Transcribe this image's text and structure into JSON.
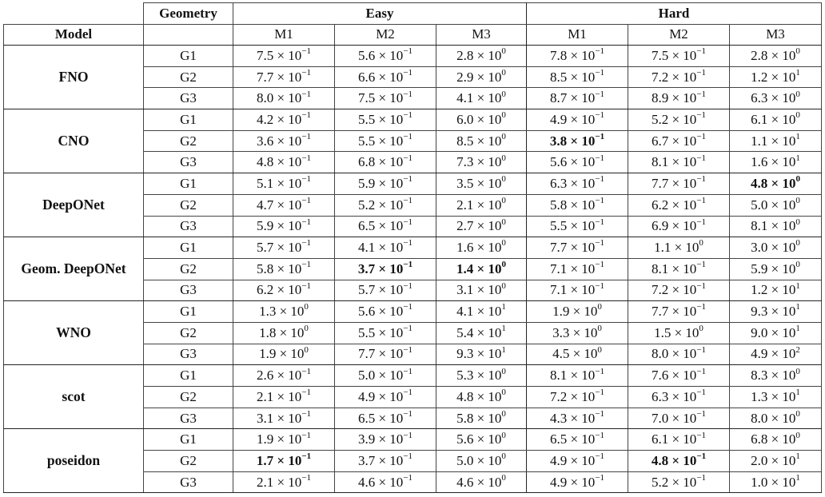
{
  "header": {
    "geometry": "Geometry",
    "easy": "Easy",
    "hard": "Hard",
    "model": "Model",
    "metrics": [
      "M1",
      "M2",
      "M3",
      "M1",
      "M2",
      "M3"
    ]
  },
  "rows": [
    {
      "model": "FNO",
      "geometries": [
        {
          "g": "G1",
          "cells": [
            [
              "7.5",
              "-1"
            ],
            [
              "5.6",
              "-1"
            ],
            [
              "2.8",
              "0"
            ],
            [
              "7.8",
              "-1"
            ],
            [
              "7.5",
              "-1"
            ],
            [
              "2.8",
              "0"
            ]
          ],
          "bold": []
        },
        {
          "g": "G2",
          "cells": [
            [
              "7.7",
              "-1"
            ],
            [
              "6.6",
              "-1"
            ],
            [
              "2.9",
              "0"
            ],
            [
              "8.5",
              "-1"
            ],
            [
              "7.2",
              "-1"
            ],
            [
              "1.2",
              "1"
            ]
          ],
          "bold": []
        },
        {
          "g": "G3",
          "cells": [
            [
              "8.0",
              "-1"
            ],
            [
              "7.5",
              "-1"
            ],
            [
              "4.1",
              "0"
            ],
            [
              "8.7",
              "-1"
            ],
            [
              "8.9",
              "-1"
            ],
            [
              "6.3",
              "0"
            ]
          ],
          "bold": []
        }
      ]
    },
    {
      "model": "CNO",
      "geometries": [
        {
          "g": "G1",
          "cells": [
            [
              "4.2",
              "-1"
            ],
            [
              "5.5",
              "-1"
            ],
            [
              "6.0",
              "0"
            ],
            [
              "4.9",
              "-1"
            ],
            [
              "5.2",
              "-1"
            ],
            [
              "6.1",
              "0"
            ]
          ],
          "bold": []
        },
        {
          "g": "G2",
          "cells": [
            [
              "3.6",
              "-1"
            ],
            [
              "5.5",
              "-1"
            ],
            [
              "8.5",
              "0"
            ],
            [
              "3.8",
              "-1"
            ],
            [
              "6.7",
              "-1"
            ],
            [
              "1.1",
              "1"
            ]
          ],
          "bold": [
            3
          ]
        },
        {
          "g": "G3",
          "cells": [
            [
              "4.8",
              "-1"
            ],
            [
              "6.8",
              "-1"
            ],
            [
              "7.3",
              "0"
            ],
            [
              "5.6",
              "-1"
            ],
            [
              "8.1",
              "-1"
            ],
            [
              "1.6",
              "1"
            ]
          ],
          "bold": []
        }
      ]
    },
    {
      "model": "DeepONet",
      "geometries": [
        {
          "g": "G1",
          "cells": [
            [
              "5.1",
              "-1"
            ],
            [
              "5.9",
              "-1"
            ],
            [
              "3.5",
              "0"
            ],
            [
              "6.3",
              "-1"
            ],
            [
              "7.7",
              "-1"
            ],
            [
              "4.8",
              "0"
            ]
          ],
          "bold": [
            5
          ]
        },
        {
          "g": "G2",
          "cells": [
            [
              "4.7",
              "-1"
            ],
            [
              "5.2",
              "-1"
            ],
            [
              "2.1",
              "0"
            ],
            [
              "5.8",
              "-1"
            ],
            [
              "6.2",
              "-1"
            ],
            [
              "5.0",
              "0"
            ]
          ],
          "bold": []
        },
        {
          "g": "G3",
          "cells": [
            [
              "5.9",
              "-1"
            ],
            [
              "6.5",
              "-1"
            ],
            [
              "2.7",
              "0"
            ],
            [
              "5.5",
              "-1"
            ],
            [
              "6.9",
              "-1"
            ],
            [
              "8.1",
              "0"
            ]
          ],
          "bold": []
        }
      ]
    },
    {
      "model": "Geom. DeepONet",
      "geometries": [
        {
          "g": "G1",
          "cells": [
            [
              "5.7",
              "-1"
            ],
            [
              "4.1",
              "-1"
            ],
            [
              "1.6",
              "0"
            ],
            [
              "7.7",
              "-1"
            ],
            [
              "1.1",
              "0"
            ],
            [
              "3.0",
              "0"
            ]
          ],
          "bold": []
        },
        {
          "g": "G2",
          "cells": [
            [
              "5.8",
              "-1"
            ],
            [
              "3.7",
              "-1"
            ],
            [
              "1.4",
              "0"
            ],
            [
              "7.1",
              "-1"
            ],
            [
              "8.1",
              "-1"
            ],
            [
              "5.9",
              "0"
            ]
          ],
          "bold": [
            1,
            2
          ]
        },
        {
          "g": "G3",
          "cells": [
            [
              "6.2",
              "-1"
            ],
            [
              "5.7",
              "-1"
            ],
            [
              "3.1",
              "0"
            ],
            [
              "7.1",
              "-1"
            ],
            [
              "7.2",
              "-1"
            ],
            [
              "1.2",
              "1"
            ]
          ],
          "bold": []
        }
      ]
    },
    {
      "model": "WNO",
      "geometries": [
        {
          "g": "G1",
          "cells": [
            [
              "1.3",
              "0"
            ],
            [
              "5.6",
              "-1"
            ],
            [
              "4.1",
              "1"
            ],
            [
              "1.9",
              "0"
            ],
            [
              "7.7",
              "-1"
            ],
            [
              "9.3",
              "1"
            ]
          ],
          "bold": []
        },
        {
          "g": "G2",
          "cells": [
            [
              "1.8",
              "0"
            ],
            [
              "5.5",
              "-1"
            ],
            [
              "5.4",
              "1"
            ],
            [
              "3.3",
              "0"
            ],
            [
              "1.5",
              "0"
            ],
            [
              "9.0",
              "1"
            ]
          ],
          "bold": []
        },
        {
          "g": "G3",
          "cells": [
            [
              "1.9",
              "0"
            ],
            [
              "7.7",
              "-1"
            ],
            [
              "9.3",
              "1"
            ],
            [
              "4.5",
              "0"
            ],
            [
              "8.0",
              "-1"
            ],
            [
              "4.9",
              "2"
            ]
          ],
          "bold": []
        }
      ]
    },
    {
      "model": "scot",
      "geometries": [
        {
          "g": "G1",
          "cells": [
            [
              "2.6",
              "-1"
            ],
            [
              "5.0",
              "-1"
            ],
            [
              "5.3",
              "0"
            ],
            [
              "8.1",
              "-1"
            ],
            [
              "7.6",
              "-1"
            ],
            [
              "8.3",
              "0"
            ]
          ],
          "bold": []
        },
        {
          "g": "G2",
          "cells": [
            [
              "2.1",
              "-1"
            ],
            [
              "4.9",
              "-1"
            ],
            [
              "4.8",
              "0"
            ],
            [
              "7.2",
              "-1"
            ],
            [
              "6.3",
              "-1"
            ],
            [
              "1.3",
              "1"
            ]
          ],
          "bold": []
        },
        {
          "g": "G3",
          "cells": [
            [
              "3.1",
              "-1"
            ],
            [
              "6.5",
              "-1"
            ],
            [
              "5.8",
              "0"
            ],
            [
              "4.3",
              "-1"
            ],
            [
              "7.0",
              "-1"
            ],
            [
              "8.0",
              "0"
            ]
          ],
          "bold": []
        }
      ]
    },
    {
      "model": "poseidon",
      "geometries": [
        {
          "g": "G1",
          "cells": [
            [
              "1.9",
              "-1"
            ],
            [
              "3.9",
              "-1"
            ],
            [
              "5.6",
              "0"
            ],
            [
              "6.5",
              "-1"
            ],
            [
              "6.1",
              "-1"
            ],
            [
              "6.8",
              "0"
            ]
          ],
          "bold": []
        },
        {
          "g": "G2",
          "cells": [
            [
              "1.7",
              "-1"
            ],
            [
              "3.7",
              "-1"
            ],
            [
              "5.0",
              "0"
            ],
            [
              "4.9",
              "-1"
            ],
            [
              "4.8",
              "-1"
            ],
            [
              "2.0",
              "1"
            ]
          ],
          "bold": [
            0,
            4
          ]
        },
        {
          "g": "G3",
          "cells": [
            [
              "2.1",
              "-1"
            ],
            [
              "4.6",
              "-1"
            ],
            [
              "4.6",
              "0"
            ],
            [
              "4.9",
              "-1"
            ],
            [
              "5.2",
              "-1"
            ],
            [
              "1.0",
              "1"
            ]
          ],
          "bold": []
        }
      ]
    }
  ]
}
